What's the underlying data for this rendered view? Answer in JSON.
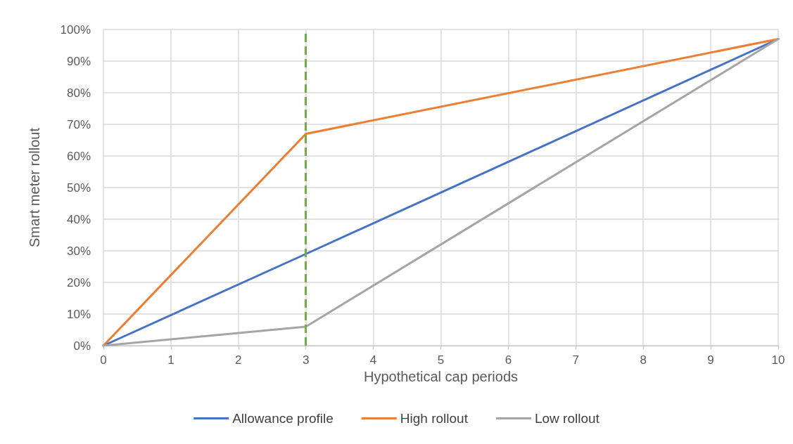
{
  "chart_data": {
    "type": "line",
    "xlabel": "Hypothetical cap periods",
    "ylabel": "Smart meter rollout",
    "x": [
      0,
      3,
      10
    ],
    "series": [
      {
        "name": "Allowance profile",
        "color": "#4472c4",
        "values": [
          0,
          29,
          97
        ]
      },
      {
        "name": "High rollout",
        "color": "#ed7d31",
        "values": [
          0,
          67,
          97
        ]
      },
      {
        "name": "Low rollout",
        "color": "#a5a5a5",
        "values": [
          0,
          6,
          97
        ]
      }
    ],
    "xlim": [
      0,
      10
    ],
    "xticks": [
      0,
      1,
      2,
      3,
      4,
      5,
      6,
      7,
      8,
      9,
      10
    ],
    "ylim": [
      0,
      100
    ],
    "yticks": [
      {
        "value": 0,
        "label": "0%"
      },
      {
        "value": 10,
        "label": "10%"
      },
      {
        "value": 20,
        "label": "20%"
      },
      {
        "value": 30,
        "label": "30%"
      },
      {
        "value": 40,
        "label": "40%"
      },
      {
        "value": 50,
        "label": "50%"
      },
      {
        "value": 60,
        "label": "60%"
      },
      {
        "value": 70,
        "label": "70%"
      },
      {
        "value": 80,
        "label": "80%"
      },
      {
        "value": 90,
        "label": "90%"
      },
      {
        "value": 100,
        "label": "100%"
      }
    ],
    "ref_lines": [
      {
        "axis": "x",
        "value": 3,
        "color": "#70ad47",
        "line_style": "dashed"
      }
    ],
    "grid": true,
    "legend": "bottom",
    "marker": "none",
    "line_style": "solid"
  }
}
